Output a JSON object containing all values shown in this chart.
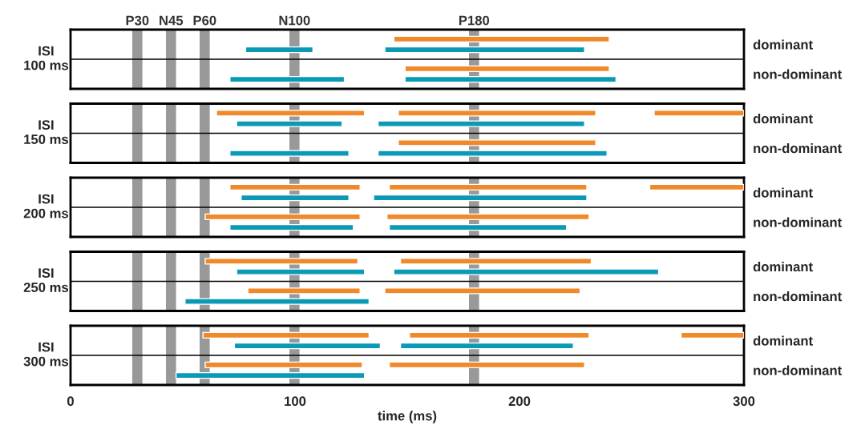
{
  "chart_data": [
    {
      "type": "bar",
      "orientation": "horizontal",
      "ylabel": "ISI\n100 ms",
      "categories": [
        "dominant",
        "non-dominant"
      ],
      "xlim": [
        0,
        300
      ],
      "tick_labels": "y",
      "legend": false,
      "grid": false,
      "bands": [
        {
          "axis": "x",
          "from": 27.5,
          "to": 32,
          "label": "P30",
          "color": "#999999"
        },
        {
          "axis": "x",
          "from": 42.5,
          "to": 47,
          "label": "N45",
          "color": "#999999"
        },
        {
          "axis": "x",
          "from": 57.5,
          "to": 62,
          "label": "P60",
          "color": "#999999"
        },
        {
          "axis": "x",
          "from": 97.5,
          "to": 102,
          "label": "N100",
          "color": "#999999"
        },
        {
          "axis": "x",
          "from": 177.5,
          "to": 182,
          "label": "P180",
          "color": "#999999"
        }
      ],
      "series": [
        {
          "color": "#f0892a",
          "base": [
            144,
            149
          ],
          "values": [
            96,
            91
          ]
        },
        {
          "color": "#0a9ab5",
          "base": [
            78,
            71
          ],
          "values": [
            30,
            51
          ]
        },
        {
          "color": "#0a9ab5",
          "base": [
            140,
            149
          ],
          "values": [
            89,
            94
          ]
        }
      ]
    },
    {
      "type": "bar",
      "orientation": "horizontal",
      "ylabel": "ISI\n150 ms",
      "categories": [
        "dominant",
        "non-dominant"
      ],
      "xlim": [
        0,
        300
      ],
      "tick_labels": "y",
      "legend": false,
      "grid": false,
      "bands": [
        {
          "axis": "x",
          "from": 27.5,
          "to": 32,
          "color": "#999999"
        },
        {
          "axis": "x",
          "from": 42.5,
          "to": 47,
          "color": "#999999"
        },
        {
          "axis": "x",
          "from": 57.5,
          "to": 62,
          "color": "#999999"
        },
        {
          "axis": "x",
          "from": 97.5,
          "to": 102,
          "color": "#999999"
        },
        {
          "axis": "x",
          "from": 177.5,
          "to": 182,
          "color": "#999999"
        }
      ],
      "series": [
        {
          "color": "#f0892a",
          "base": [
            65,
            null
          ],
          "values": [
            66,
            null
          ]
        },
        {
          "color": "#f0892a",
          "base": [
            146,
            146
          ],
          "values": [
            88,
            88
          ]
        },
        {
          "color": "#f0892a",
          "base": [
            260,
            null
          ],
          "values": [
            40,
            null
          ]
        },
        {
          "color": "#0a9ab5",
          "base": [
            74,
            71
          ],
          "values": [
            47,
            53
          ]
        },
        {
          "color": "#0a9ab5",
          "base": [
            137,
            137
          ],
          "values": [
            92,
            102
          ]
        }
      ]
    },
    {
      "type": "bar",
      "orientation": "horizontal",
      "ylabel": "ISI\n200 ms",
      "categories": [
        "dominant",
        "non-dominant"
      ],
      "xlim": [
        0,
        300
      ],
      "tick_labels": "y",
      "legend": false,
      "grid": false,
      "bands": [
        {
          "axis": "x",
          "from": 27.5,
          "to": 32,
          "color": "#999999"
        },
        {
          "axis": "x",
          "from": 42.5,
          "to": 47,
          "color": "#999999"
        },
        {
          "axis": "x",
          "from": 57.5,
          "to": 62,
          "color": "#999999"
        },
        {
          "axis": "x",
          "from": 97.5,
          "to": 102,
          "color": "#999999"
        },
        {
          "axis": "x",
          "from": 177.5,
          "to": 182,
          "color": "#999999"
        }
      ],
      "series": [
        {
          "color": "#f0892a",
          "base": [
            71,
            60
          ],
          "values": [
            58,
            69
          ]
        },
        {
          "color": "#f0892a",
          "base": [
            142,
            141
          ],
          "values": [
            88,
            90
          ]
        },
        {
          "color": "#f0892a",
          "base": [
            258,
            null
          ],
          "values": [
            42,
            null
          ]
        },
        {
          "color": "#0a9ab5",
          "base": [
            76,
            71
          ],
          "values": [
            48,
            55
          ]
        },
        {
          "color": "#0a9ab5",
          "base": [
            135,
            142
          ],
          "values": [
            95,
            79
          ]
        }
      ]
    },
    {
      "type": "bar",
      "orientation": "horizontal",
      "ylabel": "ISI\n250 ms",
      "categories": [
        "dominant",
        "non-dominant"
      ],
      "xlim": [
        0,
        300
      ],
      "tick_labels": "y",
      "legend": false,
      "grid": false,
      "bands": [
        {
          "axis": "x",
          "from": 27.5,
          "to": 32,
          "color": "#999999"
        },
        {
          "axis": "x",
          "from": 42.5,
          "to": 47,
          "color": "#999999"
        },
        {
          "axis": "x",
          "from": 57.5,
          "to": 62,
          "color": "#999999"
        },
        {
          "axis": "x",
          "from": 97.5,
          "to": 102,
          "color": "#999999"
        },
        {
          "axis": "x",
          "from": 177.5,
          "to": 182,
          "color": "#999999"
        }
      ],
      "series": [
        {
          "color": "#f0892a",
          "base": [
            60,
            79
          ],
          "values": [
            68,
            50
          ]
        },
        {
          "color": "#f0892a",
          "base": [
            147,
            140
          ],
          "values": [
            85,
            87
          ]
        },
        {
          "color": "#0a9ab5",
          "base": [
            74,
            51
          ],
          "values": [
            57,
            82
          ]
        },
        {
          "color": "#0a9ab5",
          "base": [
            144,
            null
          ],
          "values": [
            118,
            null
          ]
        }
      ]
    },
    {
      "type": "bar",
      "orientation": "horizontal",
      "ylabel": "ISI\n300 ms",
      "xlabel": "time (ms)",
      "categories": [
        "dominant",
        "non-dominant"
      ],
      "xlim": [
        0,
        300
      ],
      "xticks": [
        0,
        100,
        200,
        300
      ],
      "legend": false,
      "grid": false,
      "bands": [
        {
          "axis": "x",
          "from": 27.5,
          "to": 32,
          "color": "#999999"
        },
        {
          "axis": "x",
          "from": 42.5,
          "to": 47,
          "color": "#999999"
        },
        {
          "axis": "x",
          "from": 57.5,
          "to": 62,
          "color": "#999999"
        },
        {
          "axis": "x",
          "from": 97.5,
          "to": 102,
          "color": "#999999"
        },
        {
          "axis": "x",
          "from": 177.5,
          "to": 182,
          "color": "#999999"
        }
      ],
      "series": [
        {
          "color": "#f0892a",
          "base": [
            59,
            60
          ],
          "values": [
            74,
            70
          ]
        },
        {
          "color": "#f0892a",
          "base": [
            151,
            142
          ],
          "values": [
            80,
            87
          ]
        },
        {
          "color": "#f0892a",
          "base": [
            272,
            null
          ],
          "values": [
            28,
            null
          ]
        },
        {
          "color": "#0a9ab5",
          "base": [
            73,
            47
          ],
          "values": [
            65,
            84
          ]
        },
        {
          "color": "#0a9ab5",
          "base": [
            147,
            null
          ],
          "values": [
            77,
            null
          ]
        }
      ]
    }
  ]
}
